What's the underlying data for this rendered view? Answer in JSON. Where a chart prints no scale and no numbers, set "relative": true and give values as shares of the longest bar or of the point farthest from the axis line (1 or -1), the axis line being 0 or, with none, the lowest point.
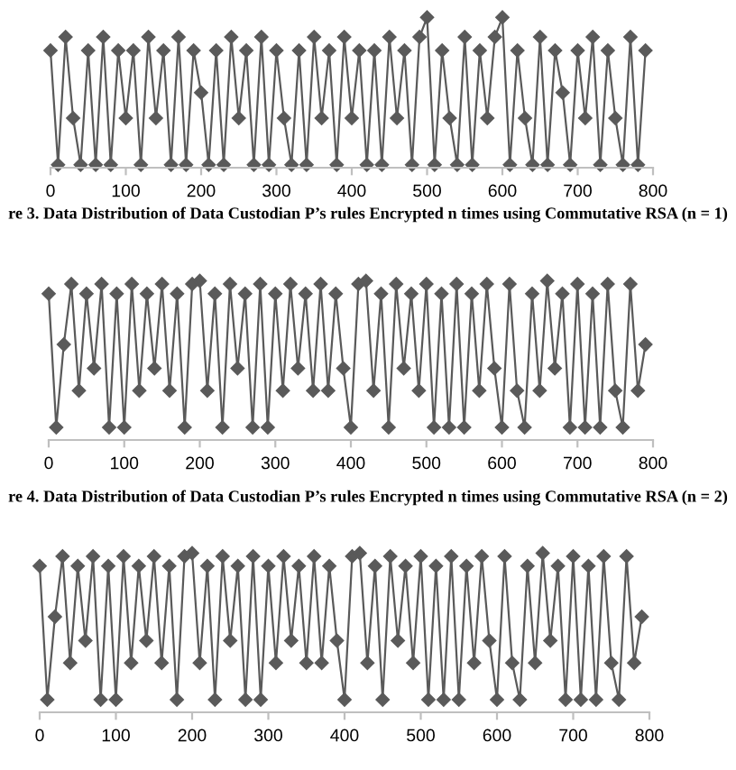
{
  "chart_data": [
    {
      "type": "line",
      "relative": true,
      "marker": "diamond",
      "line_style": "solid",
      "grid": false,
      "legend": false,
      "tick_labels": "x",
      "xlim": [
        0,
        800
      ],
      "xticks": [
        0,
        100,
        200,
        300,
        400,
        500,
        600,
        700,
        800
      ],
      "annotations": [
        "re 3. Data Distribution of Data Custodian P’s rules Encrypted n times using Commutative RSA (n = 1)"
      ],
      "series": [
        {
          "color": "#5a5a5a",
          "x": [
            0,
            10,
            20,
            30,
            40,
            50,
            60,
            70,
            80,
            90,
            100,
            110,
            120,
            130,
            140,
            150,
            160,
            170,
            180,
            190,
            200,
            210,
            220,
            230,
            240,
            250,
            260,
            270,
            280,
            290,
            300,
            310,
            320,
            330,
            340,
            350,
            360,
            370,
            380,
            390,
            400,
            410,
            420,
            430,
            440,
            450,
            460,
            470,
            480,
            490,
            500,
            510,
            520,
            530,
            540,
            550,
            560,
            570,
            580,
            590,
            600,
            610,
            620,
            630,
            640,
            650,
            660,
            670,
            680,
            690,
            700,
            710,
            720,
            730,
            740,
            750,
            760,
            770,
            780,
            790
          ],
          "values": [
            0.78,
            0.02,
            0.87,
            0.33,
            0.02,
            0.78,
            0.02,
            0.87,
            0.02,
            0.78,
            0.33,
            0.78,
            0.02,
            0.87,
            0.33,
            0.78,
            0.02,
            0.87,
            0.02,
            0.78,
            0.5,
            0.02,
            0.78,
            0.02,
            0.87,
            0.33,
            0.78,
            0.02,
            0.87,
            0.02,
            0.78,
            0.33,
            0.02,
            0.78,
            0.02,
            0.87,
            0.33,
            0.78,
            0.02,
            0.87,
            0.33,
            0.78,
            0.02,
            0.78,
            0.02,
            0.87,
            0.33,
            0.78,
            0.02,
            0.87,
            1.0,
            0.02,
            0.78,
            0.33,
            0.02,
            0.87,
            0.02,
            0.78,
            0.33,
            0.87,
            1.0,
            0.02,
            0.78,
            0.33,
            0.02,
            0.87,
            0.02,
            0.78,
            0.5,
            0.02,
            0.78,
            0.33,
            0.87,
            0.02,
            0.78,
            0.33,
            0.02,
            0.87,
            0.02,
            0.78
          ]
        }
      ]
    },
    {
      "type": "line",
      "relative": true,
      "marker": "diamond",
      "line_style": "solid",
      "grid": false,
      "legend": false,
      "tick_labels": "x",
      "xlim": [
        0,
        800
      ],
      "xticks": [
        0,
        100,
        200,
        300,
        400,
        500,
        600,
        700,
        800
      ],
      "annotations": [
        "re 4. Data Distribution of Data Custodian P’s rules Encrypted n times using Commutative RSA (n = 2)"
      ],
      "series": [
        {
          "color": "#5a5a5a",
          "x": [
            0,
            10,
            20,
            30,
            40,
            50,
            60,
            70,
            80,
            90,
            100,
            110,
            120,
            130,
            140,
            150,
            160,
            170,
            180,
            190,
            200,
            210,
            220,
            230,
            240,
            250,
            260,
            270,
            280,
            290,
            300,
            310,
            320,
            330,
            340,
            350,
            360,
            370,
            380,
            390,
            400,
            410,
            420,
            430,
            440,
            450,
            460,
            470,
            480,
            490,
            500,
            510,
            520,
            530,
            540,
            550,
            560,
            570,
            580,
            590,
            600,
            610,
            620,
            630,
            640,
            650,
            660,
            670,
            680,
            690,
            700,
            710,
            720,
            730,
            740,
            750,
            760,
            770,
            780,
            790
          ],
          "values": [
            0.92,
            0.08,
            0.6,
            0.98,
            0.31,
            0.92,
            0.45,
            0.98,
            0.08,
            0.92,
            0.08,
            0.98,
            0.31,
            0.92,
            0.45,
            0.98,
            0.31,
            0.92,
            0.08,
            0.98,
            1.0,
            0.31,
            0.92,
            0.08,
            0.98,
            0.45,
            0.92,
            0.08,
            0.98,
            0.08,
            0.92,
            0.31,
            0.98,
            0.45,
            0.92,
            0.31,
            0.98,
            0.31,
            0.92,
            0.45,
            0.08,
            0.98,
            1.0,
            0.31,
            0.92,
            0.08,
            0.98,
            0.45,
            0.92,
            0.31,
            0.98,
            0.08,
            0.92,
            0.08,
            0.98,
            0.08,
            0.92,
            0.31,
            0.98,
            0.45,
            0.08,
            0.98,
            0.31,
            0.08,
            0.92,
            0.31,
            1.0,
            0.45,
            0.92,
            0.08,
            0.98,
            0.08,
            0.92,
            0.08,
            0.98,
            0.31,
            0.08,
            0.98,
            0.31,
            0.6
          ]
        }
      ]
    },
    {
      "type": "line",
      "relative": true,
      "marker": "diamond",
      "line_style": "solid",
      "grid": false,
      "legend": false,
      "tick_labels": "x",
      "xlim": [
        0,
        800
      ],
      "xticks": [
        0,
        100,
        200,
        300,
        400,
        500,
        600,
        700,
        800
      ],
      "series": [
        {
          "color": "#5a5a5a",
          "x": [
            0,
            10,
            20,
            30,
            40,
            50,
            60,
            70,
            80,
            90,
            100,
            110,
            120,
            130,
            140,
            150,
            160,
            170,
            180,
            190,
            200,
            210,
            220,
            230,
            240,
            250,
            260,
            270,
            280,
            290,
            300,
            310,
            320,
            330,
            340,
            350,
            360,
            370,
            380,
            390,
            400,
            410,
            420,
            430,
            440,
            450,
            460,
            470,
            480,
            490,
            500,
            510,
            520,
            530,
            540,
            550,
            560,
            570,
            580,
            590,
            600,
            610,
            620,
            630,
            640,
            650,
            660,
            670,
            680,
            690,
            700,
            710,
            720,
            730,
            740,
            750,
            760,
            770,
            780,
            790
          ],
          "values": [
            0.92,
            0.08,
            0.6,
            0.98,
            0.31,
            0.92,
            0.45,
            0.98,
            0.08,
            0.92,
            0.08,
            0.98,
            0.31,
            0.92,
            0.45,
            0.98,
            0.31,
            0.92,
            0.08,
            0.98,
            1.0,
            0.31,
            0.92,
            0.08,
            0.98,
            0.45,
            0.92,
            0.08,
            0.98,
            0.08,
            0.92,
            0.31,
            0.98,
            0.45,
            0.92,
            0.31,
            0.98,
            0.31,
            0.92,
            0.45,
            0.08,
            0.98,
            1.0,
            0.31,
            0.92,
            0.08,
            0.98,
            0.45,
            0.92,
            0.31,
            0.98,
            0.08,
            0.92,
            0.08,
            0.98,
            0.08,
            0.92,
            0.31,
            0.98,
            0.45,
            0.08,
            0.98,
            0.31,
            0.08,
            0.92,
            0.31,
            1.0,
            0.45,
            0.92,
            0.08,
            0.98,
            0.08,
            0.92,
            0.08,
            0.98,
            0.31,
            0.08,
            0.98,
            0.31,
            0.6
          ]
        }
      ]
    }
  ]
}
